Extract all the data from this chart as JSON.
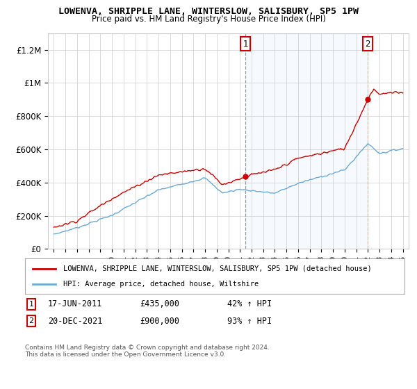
{
  "title": "LOWENVA, SHRIPPLE LANE, WINTERSLOW, SALISBURY, SP5 1PW",
  "subtitle": "Price paid vs. HM Land Registry's House Price Index (HPI)",
  "legend_line1": "LOWENVA, SHRIPPLE LANE, WINTERSLOW, SALISBURY, SP5 1PW (detached house)",
  "legend_line2": "HPI: Average price, detached house, Wiltshire",
  "annotation1_date": "17-JUN-2011",
  "annotation1_price": 435000,
  "annotation1_price_str": "£435,000",
  "annotation1_hpi": "42% ↑ HPI",
  "annotation2_date": "20-DEC-2021",
  "annotation2_price": 900000,
  "annotation2_price_str": "£900,000",
  "annotation2_hpi": "93% ↑ HPI",
  "footer": "Contains HM Land Registry data © Crown copyright and database right 2024.\nThis data is licensed under the Open Government Licence v3.0.",
  "hpi_color": "#6aaad4",
  "price_color": "#cc0000",
  "shade_color": "#ddeeff",
  "vline1_color": "#999999",
  "vline2_color": "#ffaaaa",
  "annotation_box_color": "#cc0000",
  "ylim": [
    0,
    1300000
  ],
  "yticks": [
    0,
    200000,
    400000,
    600000,
    800000,
    1000000,
    1200000
  ],
  "ytick_labels": [
    "£0",
    "£200K",
    "£400K",
    "£600K",
    "£800K",
    "£1M",
    "£1.2M"
  ],
  "sale1_year": 2011.46,
  "sale1_price": 435000,
  "sale2_year": 2021.97,
  "sale2_price": 900000,
  "background_color": "#ffffff",
  "grid_color": "#cccccc"
}
